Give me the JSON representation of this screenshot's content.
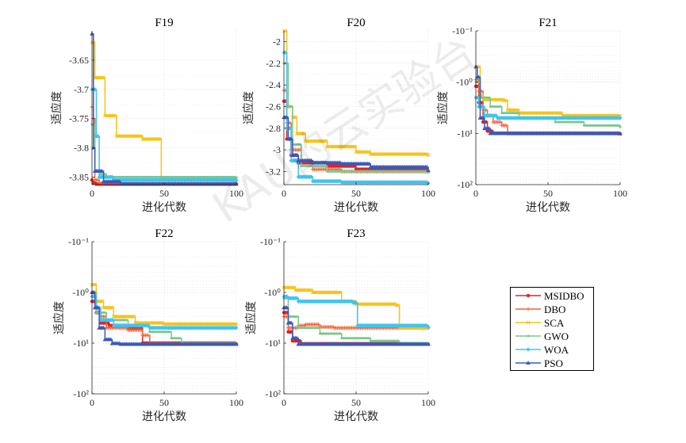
{
  "chart_data": [
    {
      "type": "line",
      "title": "F19",
      "xlabel": "进化代数",
      "ylabel": "适应度",
      "xlim": [
        0,
        100
      ],
      "ylim": [
        -3.863,
        -3.6
      ],
      "xticks": [
        "0",
        "50",
        "100"
      ],
      "yticks": [
        {
          "v": -3.65,
          "label": "-3.65"
        },
        {
          "v": -3.7,
          "label": "-3.7"
        },
        {
          "v": -3.75,
          "label": "-3.75"
        },
        {
          "v": -3.8,
          "label": "-3.8"
        },
        {
          "v": -3.85,
          "label": "-3.85"
        }
      ],
      "series": [
        {
          "name": "MSIDBO",
          "points": [
            [
              0,
              -3.855
            ],
            [
              1,
              -3.86
            ],
            [
              3,
              -3.862
            ],
            [
              100,
              -3.862
            ]
          ]
        },
        {
          "name": "DBO",
          "points": [
            [
              0,
              -3.73
            ],
            [
              1,
              -3.75
            ],
            [
              2,
              -3.855
            ],
            [
              5,
              -3.86
            ],
            [
              100,
              -3.861
            ]
          ]
        },
        {
          "name": "SCA",
          "points": [
            [
              0,
              -3.62
            ],
            [
              2,
              -3.68
            ],
            [
              8,
              -3.68
            ],
            [
              9,
              -3.745
            ],
            [
              16,
              -3.745
            ],
            [
              17,
              -3.78
            ],
            [
              34,
              -3.78
            ],
            [
              35,
              -3.785
            ],
            [
              47,
              -3.785
            ],
            [
              48,
              -3.852
            ],
            [
              100,
              -3.852
            ]
          ]
        },
        {
          "name": "GWO",
          "points": [
            [
              0,
              -3.76
            ],
            [
              2,
              -3.84
            ],
            [
              6,
              -3.845
            ],
            [
              10,
              -3.85
            ],
            [
              100,
              -3.851
            ]
          ]
        },
        {
          "name": "WOA",
          "points": [
            [
              0,
              -3.7
            ],
            [
              3,
              -3.78
            ],
            [
              5,
              -3.85
            ],
            [
              15,
              -3.855
            ],
            [
              100,
              -3.856
            ]
          ]
        },
        {
          "name": "PSO",
          "points": [
            [
              0,
              -3.605
            ],
            [
              1,
              -3.8
            ],
            [
              2,
              -3.84
            ],
            [
              7,
              -3.84
            ],
            [
              8,
              -3.858
            ],
            [
              20,
              -3.862
            ],
            [
              100,
              -3.862
            ]
          ]
        }
      ]
    },
    {
      "type": "line",
      "title": "F20",
      "xlabel": "进化代数",
      "ylabel": "适应度",
      "xlim": [
        0,
        100
      ],
      "ylim": [
        -3.322,
        -1.9
      ],
      "xticks": [
        "0",
        "50",
        "100"
      ],
      "yticks": [
        {
          "v": -2,
          "label": "-2"
        },
        {
          "v": -2.2,
          "label": "-2.2"
        },
        {
          "v": -2.4,
          "label": "-2.4"
        },
        {
          "v": -2.6,
          "label": "-2.6"
        },
        {
          "v": -2.8,
          "label": "-2.8"
        },
        {
          "v": -3,
          "label": "-3"
        },
        {
          "v": -3.2,
          "label": "-3.2"
        }
      ],
      "series": [
        {
          "name": "MSIDBO",
          "points": [
            [
              0,
              -2.55
            ],
            [
              2,
              -2.9
            ],
            [
              5,
              -3.05
            ],
            [
              10,
              -3.12
            ],
            [
              30,
              -3.15
            ],
            [
              50,
              -3.18
            ],
            [
              100,
              -3.2
            ]
          ]
        },
        {
          "name": "DBO",
          "points": [
            [
              0,
              -2.45
            ],
            [
              2,
              -2.75
            ],
            [
              5,
              -3.0
            ],
            [
              12,
              -3.1
            ],
            [
              20,
              -3.18
            ],
            [
              40,
              -3.2
            ],
            [
              100,
              -3.2
            ]
          ]
        },
        {
          "name": "SCA",
          "points": [
            [
              0,
              -1.9
            ],
            [
              2,
              -2.6
            ],
            [
              6,
              -2.7
            ],
            [
              9,
              -2.85
            ],
            [
              15,
              -2.92
            ],
            [
              30,
              -2.97
            ],
            [
              50,
              -3.02
            ],
            [
              60,
              -3.04
            ],
            [
              100,
              -3.05
            ]
          ]
        },
        {
          "name": "GWO",
          "points": [
            [
              0,
              -2.2
            ],
            [
              3,
              -2.6
            ],
            [
              6,
              -2.95
            ],
            [
              12,
              -3.15
            ],
            [
              30,
              -3.2
            ],
            [
              60,
              -3.2
            ],
            [
              100,
              -3.21
            ]
          ]
        },
        {
          "name": "WOA",
          "points": [
            [
              0,
              -2.1
            ],
            [
              2,
              -2.8
            ],
            [
              5,
              -3.1
            ],
            [
              10,
              -3.25
            ],
            [
              20,
              -3.29
            ],
            [
              40,
              -3.3
            ],
            [
              100,
              -3.31
            ]
          ]
        },
        {
          "name": "PSO",
          "points": [
            [
              0,
              -2.7
            ],
            [
              3,
              -2.9
            ],
            [
              6,
              -3.05
            ],
            [
              10,
              -3.1
            ],
            [
              20,
              -3.12
            ],
            [
              40,
              -3.13
            ],
            [
              60,
              -3.16
            ],
            [
              100,
              -3.19
            ]
          ]
        }
      ]
    },
    {
      "type": "line",
      "title": "F21",
      "xlabel": "进化代数",
      "ylabel": "适应度",
      "xlim": [
        0,
        100
      ],
      "ylim": [
        -0.1,
        -100
      ],
      "xticks": [
        "0",
        "50",
        "100"
      ],
      "yticks": [
        {
          "v": -0.1,
          "label": "-10⁻¹"
        },
        {
          "v": -1,
          "label": "-10⁰"
        },
        {
          "v": -10,
          "label": "-10¹"
        },
        {
          "v": -100,
          "label": "-10²"
        }
      ],
      "series": [
        {
          "name": "MSIDBO",
          "points": [
            [
              0,
              -1.2
            ],
            [
              2,
              -2.5
            ],
            [
              5,
              -6
            ],
            [
              8,
              -9
            ],
            [
              12,
              -10
            ],
            [
              100,
              -10.15
            ]
          ]
        },
        {
          "name": "DBO",
          "points": [
            [
              0,
              -0.9
            ],
            [
              2,
              -1.5
            ],
            [
              5,
              -3.5
            ],
            [
              8,
              -4.5
            ],
            [
              12,
              -6
            ],
            [
              18,
              -7
            ],
            [
              22,
              -10
            ],
            [
              100,
              -10.1
            ]
          ]
        },
        {
          "name": "SCA",
          "points": [
            [
              0,
              -0.5
            ],
            [
              3,
              -1.8
            ],
            [
              5,
              -2.2
            ],
            [
              20,
              -2.3
            ],
            [
              22,
              -3.5
            ],
            [
              30,
              -4
            ],
            [
              60,
              -4.5
            ],
            [
              100,
              -4.6
            ]
          ]
        },
        {
          "name": "GWO",
          "points": [
            [
              0,
              -1.0
            ],
            [
              3,
              -2.0
            ],
            [
              10,
              -3
            ],
            [
              18,
              -4
            ],
            [
              30,
              -5
            ],
            [
              55,
              -6
            ],
            [
              75,
              -7
            ],
            [
              100,
              -7.5
            ]
          ]
        },
        {
          "name": "WOA",
          "points": [
            [
              0,
              -2.0
            ],
            [
              2,
              -3.0
            ],
            [
              6,
              -4.5
            ],
            [
              15,
              -5
            ],
            [
              100,
              -5
            ]
          ]
        },
        {
          "name": "PSO",
          "points": [
            [
              0,
              -0.5
            ],
            [
              1,
              -0.8
            ],
            [
              3,
              -5
            ],
            [
              6,
              -8
            ],
            [
              10,
              -10
            ],
            [
              100,
              -10.2
            ]
          ]
        }
      ]
    },
    {
      "type": "line",
      "title": "F22",
      "xlabel": "进化代数",
      "ylabel": "适应度",
      "xlim": [
        0,
        100
      ],
      "ylim": [
        -0.1,
        -100
      ],
      "xticks": [
        "0",
        "50",
        "100"
      ],
      "yticks": [
        {
          "v": -0.1,
          "label": "-10⁻¹"
        },
        {
          "v": -1,
          "label": "-10⁰"
        },
        {
          "v": -10,
          "label": "-10¹"
        },
        {
          "v": -100,
          "label": "-10²"
        }
      ],
      "series": [
        {
          "name": "MSIDBO",
          "points": [
            [
              0,
              -1.5
            ],
            [
              3,
              -2.5
            ],
            [
              6,
              -4
            ],
            [
              12,
              -4.5
            ],
            [
              25,
              -5
            ],
            [
              35,
              -10
            ],
            [
              100,
              -10.4
            ]
          ]
        },
        {
          "name": "DBO",
          "points": [
            [
              0,
              -1.0
            ],
            [
              3,
              -2
            ],
            [
              6,
              -3
            ],
            [
              10,
              -5
            ],
            [
              25,
              -5.5
            ],
            [
              35,
              -7
            ],
            [
              40,
              -10
            ],
            [
              100,
              -10.3
            ]
          ]
        },
        {
          "name": "SCA",
          "points": [
            [
              0,
              -0.7
            ],
            [
              3,
              -1.5
            ],
            [
              8,
              -2
            ],
            [
              15,
              -3
            ],
            [
              30,
              -4
            ],
            [
              50,
              -4.2
            ],
            [
              100,
              -4.2
            ]
          ]
        },
        {
          "name": "GWO",
          "points": [
            [
              0,
              -1.0
            ],
            [
              3,
              -2.5
            ],
            [
              10,
              -3.5
            ],
            [
              25,
              -4.5
            ],
            [
              40,
              -6
            ],
            [
              55,
              -8
            ],
            [
              62,
              -10
            ],
            [
              100,
              -10.3
            ]
          ]
        },
        {
          "name": "WOA",
          "points": [
            [
              0,
              -1.2
            ],
            [
              3,
              -2
            ],
            [
              6,
              -3.5
            ],
            [
              15,
              -4.5
            ],
            [
              40,
              -5
            ],
            [
              100,
              -5
            ]
          ]
        },
        {
          "name": "PSO",
          "points": [
            [
              0,
              -1.0
            ],
            [
              2,
              -2
            ],
            [
              5,
              -5
            ],
            [
              9,
              -8.5
            ],
            [
              14,
              -10.2
            ],
            [
              20,
              -10.5
            ],
            [
              100,
              -10.5
            ]
          ]
        }
      ]
    },
    {
      "type": "line",
      "title": "F23",
      "xlabel": "进化代数",
      "ylabel": "适应度",
      "xlim": [
        0,
        100
      ],
      "ylim": [
        -0.1,
        -100
      ],
      "xticks": [
        "0",
        "50",
        "100"
      ],
      "yticks": [
        {
          "v": -0.1,
          "label": "-10⁻¹"
        },
        {
          "v": -1,
          "label": "-10⁰"
        },
        {
          "v": -10,
          "label": "-10¹"
        },
        {
          "v": -100,
          "label": "-10²"
        }
      ],
      "series": [
        {
          "name": "MSIDBO",
          "points": [
            [
              0,
              -2.5
            ],
            [
              3,
              -6
            ],
            [
              6,
              -9
            ],
            [
              12,
              -10.3
            ],
            [
              100,
              -10.5
            ]
          ]
        },
        {
          "name": "DBO",
          "points": [
            [
              0,
              -3
            ],
            [
              3,
              -5
            ],
            [
              10,
              -4.5
            ],
            [
              15,
              -4.3
            ],
            [
              25,
              -4.8
            ],
            [
              35,
              -5
            ],
            [
              100,
              -5
            ]
          ]
        },
        {
          "name": "SCA",
          "points": [
            [
              0,
              -0.8
            ],
            [
              8,
              -0.9
            ],
            [
              20,
              -1
            ],
            [
              40,
              -1.5
            ],
            [
              50,
              -1.7
            ],
            [
              78,
              -1.8
            ],
            [
              80,
              -5
            ],
            [
              100,
              -5
            ]
          ]
        },
        {
          "name": "GWO",
          "points": [
            [
              0,
              -1.3
            ],
            [
              3,
              -3
            ],
            [
              10,
              -5
            ],
            [
              25,
              -6.5
            ],
            [
              40,
              -8
            ],
            [
              60,
              -9
            ],
            [
              80,
              -10
            ],
            [
              100,
              -10.3
            ]
          ]
        },
        {
          "name": "WOA",
          "points": [
            [
              0,
              -1.2
            ],
            [
              3,
              -1.3
            ],
            [
              10,
              -1.5
            ],
            [
              40,
              -1.5
            ],
            [
              48,
              -1.6
            ],
            [
              51,
              -4.5
            ],
            [
              100,
              -4.8
            ]
          ]
        },
        {
          "name": "PSO",
          "points": [
            [
              0,
              -2
            ],
            [
              3,
              -4
            ],
            [
              6,
              -8
            ],
            [
              10,
              -10.5
            ],
            [
              100,
              -10.5
            ]
          ]
        }
      ]
    }
  ],
  "legend": [
    {
      "name": "MSIDBO",
      "color": "#e0202a",
      "marker": "circle"
    },
    {
      "name": "DBO",
      "color": "#f46434",
      "marker": "plus"
    },
    {
      "name": "SCA",
      "color": "#f6c314",
      "marker": "cross"
    },
    {
      "name": "GWO",
      "color": "#79c78e",
      "marker": "dot"
    },
    {
      "name": "WOA",
      "color": "#3ec4f0",
      "marker": "diamond"
    },
    {
      "name": "PSO",
      "color": "#3a5ab8",
      "marker": "triangle"
    }
  ],
  "watermark": "KAU的云实验台"
}
